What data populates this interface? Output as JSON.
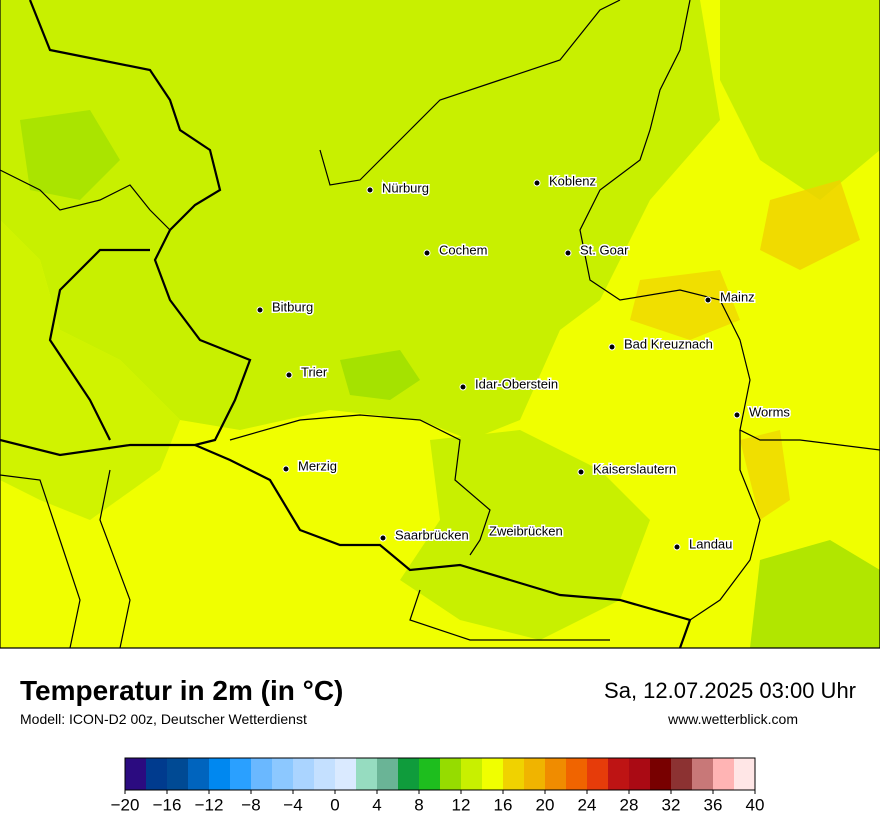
{
  "map": {
    "cities": [
      "Nürburg",
      "Koblenz",
      "Cochem",
      "St. Goar",
      "Mainz",
      "Bitburg",
      "Bad Kreuznach",
      "Trier",
      "Idar-Oberstein",
      "Worms",
      "Merzig",
      "Kaiserslautern",
      "Saarbrücken",
      "Zweibrücken",
      "Landau"
    ]
  },
  "header": {
    "title": "Temperatur in 2m (in °C)",
    "subtitle": "Modell: ICON-D2 00z, Deutscher Wetterdienst",
    "datetime": "Sa, 12.07.2025 03:00 Uhr",
    "source": "www.wetterblick.com"
  },
  "colorbar": {
    "range": [
      -20,
      40
    ],
    "ticks": [
      {
        "value": -20,
        "label": "−20"
      },
      {
        "value": -16,
        "label": "−16"
      },
      {
        "value": -12,
        "label": "−12"
      },
      {
        "value": -8,
        "label": "−8"
      },
      {
        "value": -4,
        "label": "−4"
      },
      0,
      4,
      8,
      12,
      16,
      20,
      24,
      28,
      32,
      36,
      40
    ],
    "colors": [
      "#2b0b80",
      "#003b8e",
      "#004a94",
      "#0064be",
      "#0088f0",
      "#2aa0ff",
      "#6ab8ff",
      "#8cc8ff",
      "#aad4ff",
      "#c4e0ff",
      "#daeaff",
      "#96dcc0",
      "#6ab496",
      "#0f9c3c",
      "#1ebe1e",
      "#96dc00",
      "#c8f000",
      "#f0ff00",
      "#f0d200",
      "#f0b400",
      "#f08c00",
      "#f06400",
      "#e63c0a",
      "#be1414",
      "#aa0a14",
      "#780000",
      "#8c3232",
      "#c87878",
      "#ffb4b4",
      "#ffe6e6"
    ]
  }
}
